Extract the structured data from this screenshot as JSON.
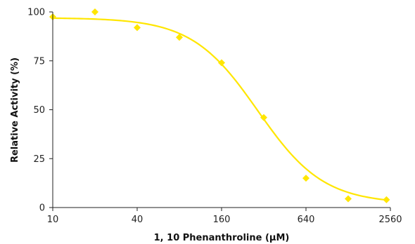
{
  "chart_data": {
    "type": "scatter",
    "xlabel": "1, 10 Phenanthroline (µM)",
    "ylabel": "Relative Activity (%)",
    "x_scale": "log2",
    "xlim": [
      10,
      2560
    ],
    "ylim": [
      0,
      100
    ],
    "x_ticks": [
      10,
      40,
      160,
      640,
      2560
    ],
    "x_tick_labels": [
      "10",
      "40",
      "160",
      "640",
      "2560"
    ],
    "y_ticks": [
      0,
      25,
      50,
      75,
      100
    ],
    "y_tick_labels": [
      "0",
      "25",
      "50",
      "75",
      "100"
    ],
    "grid": false,
    "legend": "none",
    "series": [
      {
        "marker": "diamond",
        "color": "#FFE600",
        "points": [
          {
            "x": 10,
            "y": 97.5
          },
          {
            "x": 20,
            "y": 100
          },
          {
            "x": 40,
            "y": 92
          },
          {
            "x": 80,
            "y": 87
          },
          {
            "x": 160,
            "y": 74
          },
          {
            "x": 320,
            "y": 46
          },
          {
            "x": 640,
            "y": 15
          },
          {
            "x": 1280,
            "y": 4.5
          },
          {
            "x": 2400,
            "y": 4
          }
        ]
      }
    ],
    "fit_curve": {
      "model": "four-parameter logistic",
      "color": "#FFE600",
      "top": 97,
      "bottom": 2,
      "ic50": 290,
      "hill": 1.85,
      "x_range": [
        10,
        2400
      ]
    }
  }
}
